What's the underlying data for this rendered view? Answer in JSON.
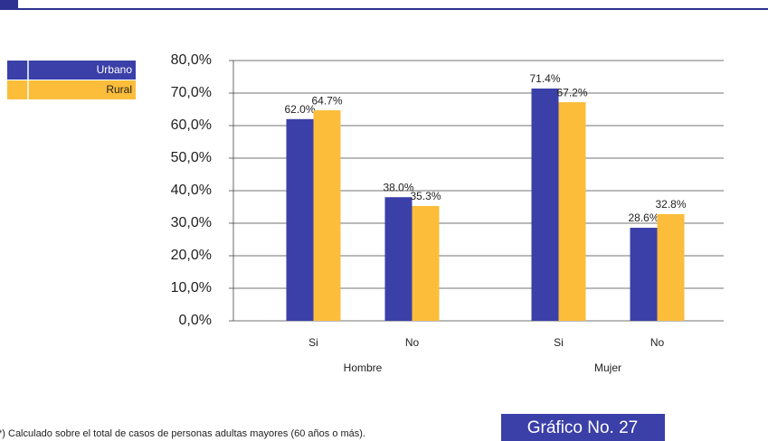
{
  "chart_data": {
    "type": "bar",
    "categories": [
      "Si",
      "No",
      "Si",
      "No"
    ],
    "group_labels": [
      "Hombre",
      "Mujer"
    ],
    "series": [
      {
        "name": "Urbano",
        "color": "#3b3fa8",
        "values": [
          62.0,
          38.0,
          71.4,
          28.6
        ],
        "value_labels": [
          "62.0%",
          "38.0%",
          "71.4%",
          "28.6%"
        ]
      },
      {
        "name": "Rural",
        "color": "#fbbd3a",
        "values": [
          64.7,
          35.3,
          67.2,
          32.8
        ],
        "value_labels": [
          "64.7%",
          "35.3%",
          "67.2%",
          "32.8%"
        ]
      }
    ],
    "ylim": [
      0,
      80
    ],
    "yticks": [
      {
        "value": 0,
        "label": "0,0%"
      },
      {
        "value": 10,
        "label": "10,0%"
      },
      {
        "value": 20,
        "label": "20,0%"
      },
      {
        "value": 30,
        "label": "30,0%"
      },
      {
        "value": 40,
        "label": "40,0%"
      },
      {
        "value": 50,
        "label": "50,0%"
      },
      {
        "value": 60,
        "label": "60,0%"
      },
      {
        "value": 70,
        "label": "70,0%"
      },
      {
        "value": 80,
        "label": "80,0%"
      }
    ],
    "grid": true,
    "footnote": "*) Calculado sobre el total de casos de personas adultas mayores (60 años o más).",
    "badge": "Gráfico No. 27"
  }
}
